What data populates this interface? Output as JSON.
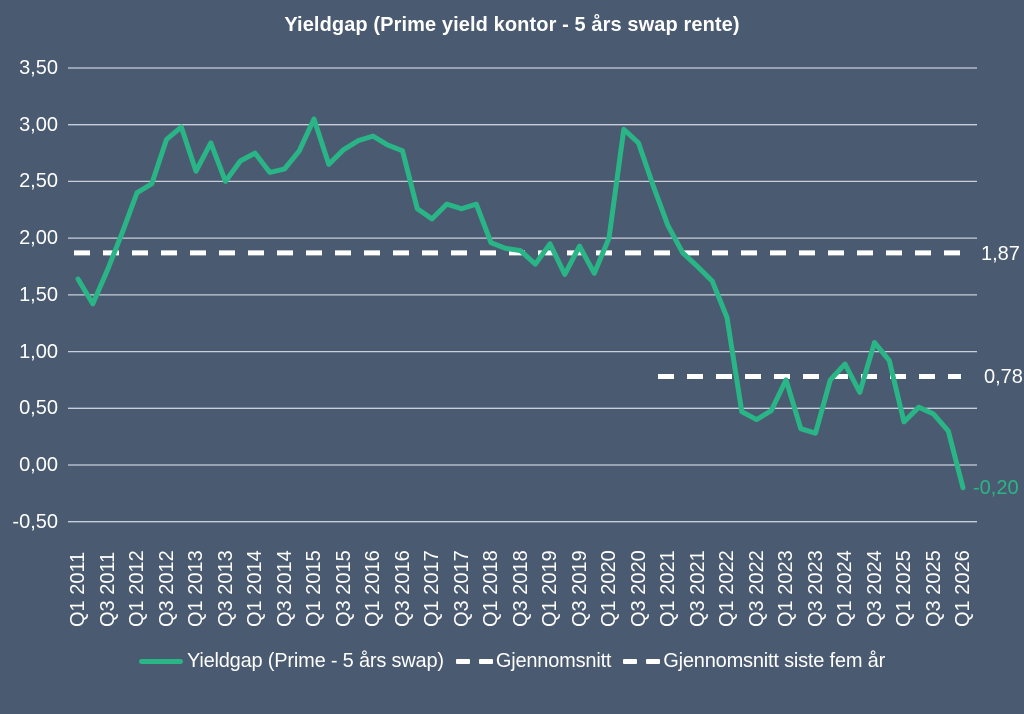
{
  "title": "Yieldgap (Prime yield kontor - 5 års swap rente)",
  "colors": {
    "background": "#4A5A70",
    "series": "#2AB586",
    "gridline": "#C8CEDA",
    "reference_line": "#FFFFFF",
    "text": "#FFFFFF",
    "end_label": "#2AB586"
  },
  "chart_data": {
    "type": "line",
    "title": "Yieldgap (Prime yield kontor - 5 års swap rente)",
    "grid": "horizontal",
    "legend_position": "bottom",
    "ylim": [
      -0.5,
      3.5
    ],
    "ytick_step": 0.5,
    "ytick_values": [
      3.5,
      3.0,
      2.5,
      2.0,
      1.5,
      1.0,
      0.5,
      0.0,
      -0.5
    ],
    "ytick_labels": [
      "3,50",
      "3,00",
      "2,50",
      "2,00",
      "1,50",
      "1,00",
      "0,50",
      "0,00",
      "-0,50"
    ],
    "x": [
      "Q1 2011",
      "Q2 2011",
      "Q3 2011",
      "Q4 2011",
      "Q1 2012",
      "Q2 2012",
      "Q3 2012",
      "Q4 2012",
      "Q1 2013",
      "Q2 2013",
      "Q3 2013",
      "Q4 2013",
      "Q1 2014",
      "Q2 2014",
      "Q3 2014",
      "Q4 2014",
      "Q1 2015",
      "Q2 2015",
      "Q3 2015",
      "Q4 2015",
      "Q1 2016",
      "Q2 2016",
      "Q3 2016",
      "Q4 2016",
      "Q1 2017",
      "Q2 2017",
      "Q3 2017",
      "Q4 2017",
      "Q1 2018",
      "Q2 2018",
      "Q3 2018",
      "Q4 2018",
      "Q1 2019",
      "Q2 2019",
      "Q3 2019",
      "Q4 2019",
      "Q1 2020",
      "Q2 2020",
      "Q3 2020",
      "Q4 2020",
      "Q1 2021",
      "Q2 2021",
      "Q3 2021",
      "Q4 2021",
      "Q1 2022",
      "Q2 2022",
      "Q3 2022",
      "Q4 2022",
      "Q1 2023",
      "Q2 2023",
      "Q3 2023",
      "Q4 2023",
      "Q1 2024",
      "Q2 2024",
      "Q3 2024",
      "Q4 2024",
      "Q1 2025",
      "Q2 2025",
      "Q3 2025",
      "Q4 2025",
      "Q1 2026"
    ],
    "xtick_labels_visible": [
      "Q1 2011",
      "Q3 2011",
      "Q1 2012",
      "Q3 2012",
      "Q1 2013",
      "Q3 2013",
      "Q1 2014",
      "Q3 2014",
      "Q1 2015",
      "Q3 2015",
      "Q1 2016",
      "Q3 2016",
      "Q1 2017",
      "Q3 2017",
      "Q1 2018",
      "Q3 2018",
      "Q1 2019",
      "Q3 2019",
      "Q1 2020",
      "Q3 2020",
      "Q1 2021",
      "Q3 2021",
      "Q1 2022",
      "Q3 2022",
      "Q1 2023",
      "Q3 2023",
      "Q1 2024",
      "Q3 2024",
      "Q1 2025",
      "Q3 2025",
      "Q1 2026"
    ],
    "xtick_label_every_n": 2,
    "series": [
      {
        "name": "Yieldgap (Prime - 5 års swap)",
        "color": "#2AB586",
        "values": [
          1.64,
          1.42,
          1.72,
          2.05,
          2.4,
          2.48,
          2.87,
          2.98,
          2.59,
          2.84,
          2.5,
          2.68,
          2.75,
          2.58,
          2.61,
          2.77,
          3.05,
          2.65,
          2.78,
          2.86,
          2.9,
          2.82,
          2.77,
          2.26,
          2.17,
          2.3,
          2.26,
          2.3,
          1.96,
          1.91,
          1.89,
          1.77,
          1.95,
          1.68,
          1.93,
          1.69,
          2.0,
          2.96,
          2.84,
          2.46,
          2.11,
          1.87,
          1.75,
          1.62,
          1.3,
          0.47,
          0.4,
          0.48,
          0.75,
          0.32,
          0.28,
          0.75,
          0.89,
          0.64,
          1.08,
          0.92,
          0.38,
          0.51,
          0.45,
          0.3,
          -0.2
        ]
      }
    ],
    "reference_lines": [
      {
        "name": "Gjennomsnitt",
        "value": 1.87,
        "label": "1,87",
        "start_index": 0,
        "end_index": 60,
        "style": "dashed",
        "color": "#FFFFFF"
      },
      {
        "name": "Gjennomsnitt siste fem år",
        "value": 0.78,
        "label": "0,78",
        "start_index": 40,
        "end_index": 60,
        "style": "dashed",
        "color": "#FFFFFF"
      }
    ],
    "end_label": "-0,20"
  },
  "legend": {
    "items": [
      {
        "label": "Yieldgap (Prime - 5 års swap)",
        "swatch": "green-line"
      },
      {
        "label": "Gjennomsnitt",
        "swatch": "white-dashes"
      },
      {
        "label": "Gjennomsnitt siste fem år",
        "swatch": "white-dashes"
      }
    ]
  }
}
